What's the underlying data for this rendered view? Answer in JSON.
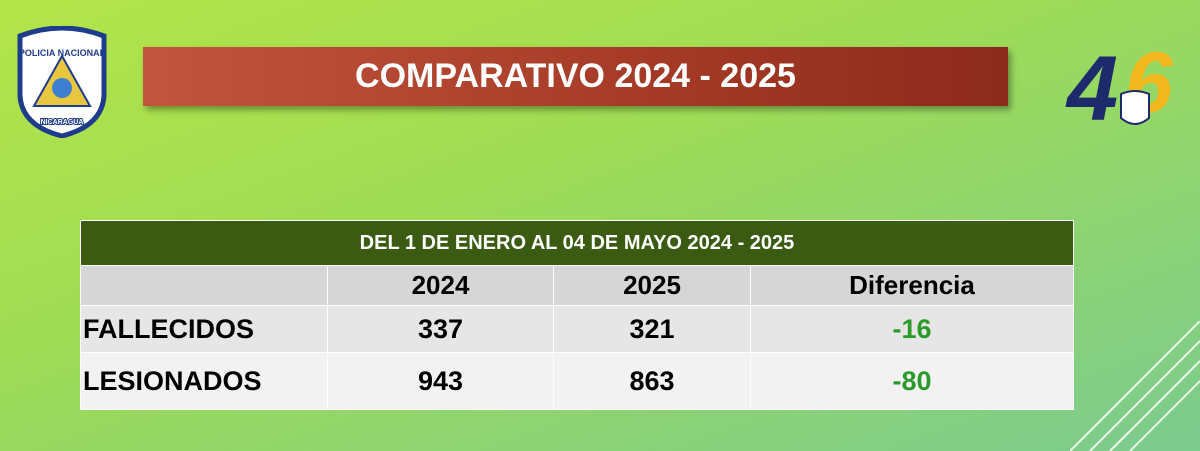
{
  "header": {
    "title": "COMPARATIVO 2024 - 2025",
    "left_logo": {
      "top": "POLICIA NACIONAL",
      "bottom": "NICARAGUA"
    },
    "right_logo": {
      "digit_1": "4",
      "digit_2": "6"
    }
  },
  "table": {
    "caption": "DEL 1 DE ENERO AL 04 DE MAYO 2024 - 2025",
    "columns": [
      "2024",
      "2025",
      "Diferencia"
    ],
    "rows": [
      [
        "FALLECIDOS",
        337,
        321,
        -16
      ],
      [
        "LESIONADOS",
        943,
        863,
        -80
      ]
    ]
  }
}
